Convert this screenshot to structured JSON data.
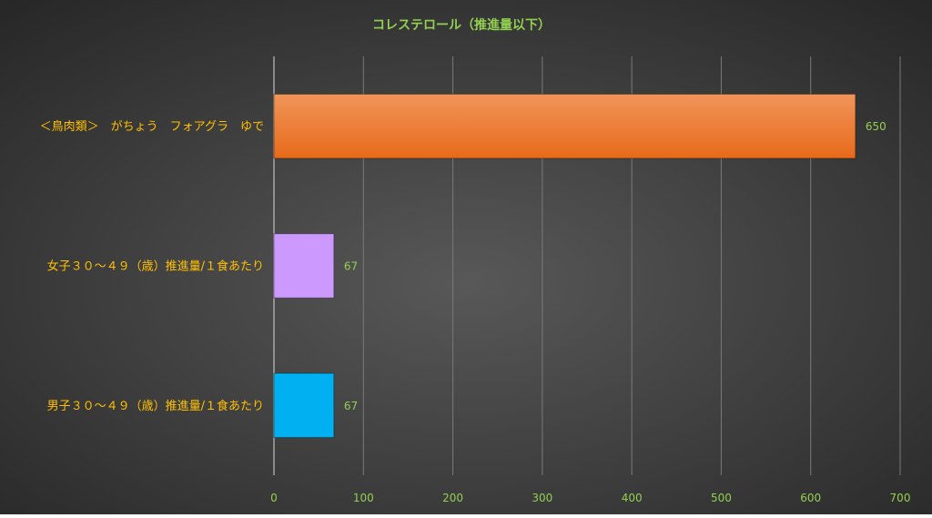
{
  "chart_data": {
    "type": "bar",
    "orientation": "horizontal",
    "title": "コレステロール（推進量以下）",
    "categories": [
      "＜鳥肉類＞　がちょう　フォアグラ　ゆで",
      "女子３０～４９（歳）推進量/１食あたり",
      "男子３０～４９（歳）推進量/１食あたり"
    ],
    "values": [
      650,
      67,
      67
    ],
    "value_labels": [
      "650",
      "67",
      "67"
    ],
    "bar_colors": [
      "#ec7a2e",
      "#cc99ff",
      "#00b0f0"
    ],
    "xlim": [
      0,
      700
    ],
    "x_ticks": [
      0,
      100,
      200,
      300,
      400,
      500,
      600,
      700
    ],
    "grid": true,
    "legend": "none"
  },
  "colors": {
    "title": "#92d050",
    "category_label": "#ffc000",
    "tick_label": "#92d050",
    "value_label": "#92d050"
  }
}
